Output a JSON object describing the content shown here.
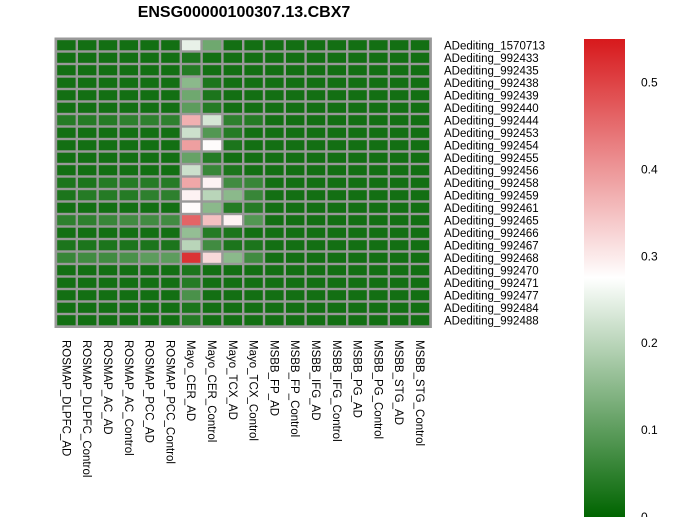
{
  "chart_data": {
    "type": "heatmap",
    "title": "ENSG00000100307.13.CBX7",
    "columns": [
      "ROSMAP_DLPFC_AD",
      "ROSMAP_DLPFC_Control",
      "ROSMAP_AC_AD",
      "ROSMAP_AC_Control",
      "ROSMAP_PCC_AD",
      "ROSMAP_PCC_Control",
      "Mayo_CER_AD",
      "Mayo_CER_Control",
      "Mayo_TCX_AD",
      "Mayo_TCX_Control",
      "MSBB_FP_AD",
      "MSBB_FP_Control",
      "MSBB_IFG_AD",
      "MSBB_IFG_Control",
      "MSBB_PG_AD",
      "MSBB_PG_Control",
      "MSBB_STG_AD",
      "MSBB_STG_Control"
    ],
    "rows": [
      "ADediting_1570713",
      "ADediting_992433",
      "ADediting_992435",
      "ADediting_992438",
      "ADediting_992439",
      "ADediting_992440",
      "ADediting_992444",
      "ADediting_992453",
      "ADediting_992454",
      "ADediting_992455",
      "ADediting_992456",
      "ADediting_992458",
      "ADediting_992459",
      "ADediting_992461",
      "ADediting_992465",
      "ADediting_992466",
      "ADediting_992467",
      "ADediting_992468",
      "ADediting_992470",
      "ADediting_992471",
      "ADediting_992477",
      "ADediting_992484",
      "ADediting_992488"
    ],
    "values": [
      [
        0.02,
        0.02,
        0.02,
        0.02,
        0.02,
        0.02,
        0.25,
        0.12,
        0.02,
        0.02,
        0.02,
        0.02,
        0.02,
        0.02,
        0.02,
        0.02,
        0.02,
        0.02
      ],
      [
        0.02,
        0.02,
        0.02,
        0.02,
        0.02,
        0.02,
        0.03,
        0.02,
        0.02,
        0.02,
        0.02,
        0.02,
        0.02,
        0.02,
        0.02,
        0.02,
        0.02,
        0.02
      ],
      [
        0.02,
        0.02,
        0.02,
        0.02,
        0.02,
        0.02,
        0.04,
        0.02,
        0.02,
        0.02,
        0.02,
        0.02,
        0.02,
        0.02,
        0.02,
        0.02,
        0.02,
        0.02
      ],
      [
        0.02,
        0.02,
        0.02,
        0.02,
        0.02,
        0.02,
        0.15,
        0.03,
        0.02,
        0.02,
        0.02,
        0.02,
        0.02,
        0.02,
        0.02,
        0.02,
        0.02,
        0.02
      ],
      [
        0.02,
        0.02,
        0.02,
        0.02,
        0.02,
        0.02,
        0.12,
        0.03,
        0.02,
        0.02,
        0.02,
        0.02,
        0.02,
        0.02,
        0.02,
        0.02,
        0.02,
        0.02
      ],
      [
        0.02,
        0.02,
        0.02,
        0.02,
        0.02,
        0.02,
        0.1,
        0.04,
        0.02,
        0.02,
        0.02,
        0.02,
        0.02,
        0.02,
        0.02,
        0.02,
        0.02,
        0.02
      ],
      [
        0.04,
        0.04,
        0.04,
        0.05,
        0.05,
        0.05,
        0.37,
        0.23,
        0.05,
        0.04,
        0.02,
        0.02,
        0.02,
        0.02,
        0.02,
        0.02,
        0.02,
        0.02
      ],
      [
        0.02,
        0.02,
        0.02,
        0.02,
        0.02,
        0.02,
        0.22,
        0.09,
        0.04,
        0.02,
        0.02,
        0.02,
        0.02,
        0.02,
        0.02,
        0.02,
        0.02,
        0.02
      ],
      [
        0.02,
        0.02,
        0.02,
        0.02,
        0.02,
        0.02,
        0.39,
        0.28,
        0.03,
        0.02,
        0.02,
        0.02,
        0.02,
        0.02,
        0.02,
        0.02,
        0.02,
        0.02
      ],
      [
        0.02,
        0.02,
        0.02,
        0.02,
        0.02,
        0.02,
        0.11,
        0.04,
        0.02,
        0.02,
        0.02,
        0.02,
        0.02,
        0.02,
        0.02,
        0.02,
        0.02,
        0.02
      ],
      [
        0.02,
        0.02,
        0.02,
        0.02,
        0.02,
        0.02,
        0.22,
        0.06,
        0.03,
        0.02,
        0.02,
        0.02,
        0.02,
        0.02,
        0.02,
        0.02,
        0.02,
        0.02
      ],
      [
        0.03,
        0.03,
        0.04,
        0.04,
        0.04,
        0.04,
        0.38,
        0.29,
        0.07,
        0.06,
        0.02,
        0.02,
        0.02,
        0.02,
        0.02,
        0.02,
        0.02,
        0.02
      ],
      [
        0.03,
        0.04,
        0.04,
        0.04,
        0.05,
        0.05,
        0.29,
        0.2,
        0.15,
        0.06,
        0.02,
        0.02,
        0.02,
        0.02,
        0.02,
        0.02,
        0.02,
        0.02
      ],
      [
        0.02,
        0.02,
        0.02,
        0.02,
        0.02,
        0.02,
        0.28,
        0.15,
        0.04,
        0.04,
        0.02,
        0.02,
        0.02,
        0.02,
        0.02,
        0.02,
        0.02,
        0.02
      ],
      [
        0.05,
        0.05,
        0.06,
        0.07,
        0.07,
        0.07,
        0.46,
        0.35,
        0.29,
        0.09,
        0.02,
        0.02,
        0.02,
        0.02,
        0.02,
        0.02,
        0.02,
        0.02
      ],
      [
        0.02,
        0.02,
        0.02,
        0.02,
        0.02,
        0.02,
        0.16,
        0.04,
        0.03,
        0.02,
        0.02,
        0.02,
        0.02,
        0.02,
        0.02,
        0.02,
        0.02,
        0.02
      ],
      [
        0.03,
        0.03,
        0.03,
        0.03,
        0.03,
        0.03,
        0.2,
        0.07,
        0.03,
        0.03,
        0.02,
        0.02,
        0.02,
        0.02,
        0.02,
        0.02,
        0.02,
        0.02
      ],
      [
        0.06,
        0.07,
        0.07,
        0.08,
        0.1,
        0.1,
        0.52,
        0.32,
        0.15,
        0.07,
        0.02,
        0.02,
        0.02,
        0.02,
        0.02,
        0.02,
        0.02,
        0.02
      ],
      [
        0.02,
        0.02,
        0.02,
        0.02,
        0.02,
        0.02,
        0.03,
        0.02,
        0.02,
        0.02,
        0.02,
        0.02,
        0.02,
        0.02,
        0.02,
        0.02,
        0.02,
        0.02
      ],
      [
        0.02,
        0.02,
        0.02,
        0.02,
        0.02,
        0.02,
        0.04,
        0.02,
        0.02,
        0.02,
        0.02,
        0.02,
        0.02,
        0.02,
        0.02,
        0.02,
        0.02,
        0.02
      ],
      [
        0.02,
        0.02,
        0.02,
        0.02,
        0.02,
        0.02,
        0.08,
        0.02,
        0.02,
        0.02,
        0.02,
        0.02,
        0.02,
        0.02,
        0.02,
        0.02,
        0.02,
        0.02
      ],
      [
        0.02,
        0.02,
        0.02,
        0.02,
        0.02,
        0.02,
        0.03,
        0.02,
        0.02,
        0.02,
        0.02,
        0.02,
        0.02,
        0.02,
        0.02,
        0.02,
        0.02,
        0.02
      ],
      [
        0.02,
        0.02,
        0.02,
        0.02,
        0.02,
        0.02,
        0.04,
        0.02,
        0.02,
        0.02,
        0.02,
        0.02,
        0.02,
        0.02,
        0.02,
        0.02,
        0.02,
        0.02
      ]
    ],
    "colorbar": {
      "min": 0,
      "max": 0.55,
      "mid": 0.275,
      "ticks": [
        0,
        0.1,
        0.2,
        0.3,
        0.4,
        0.5
      ],
      "colors": {
        "low": "#006400",
        "mid": "#ffffff",
        "high": "#d7191c"
      }
    },
    "grid_color": "#999999",
    "grid": true,
    "legend": "right"
  }
}
